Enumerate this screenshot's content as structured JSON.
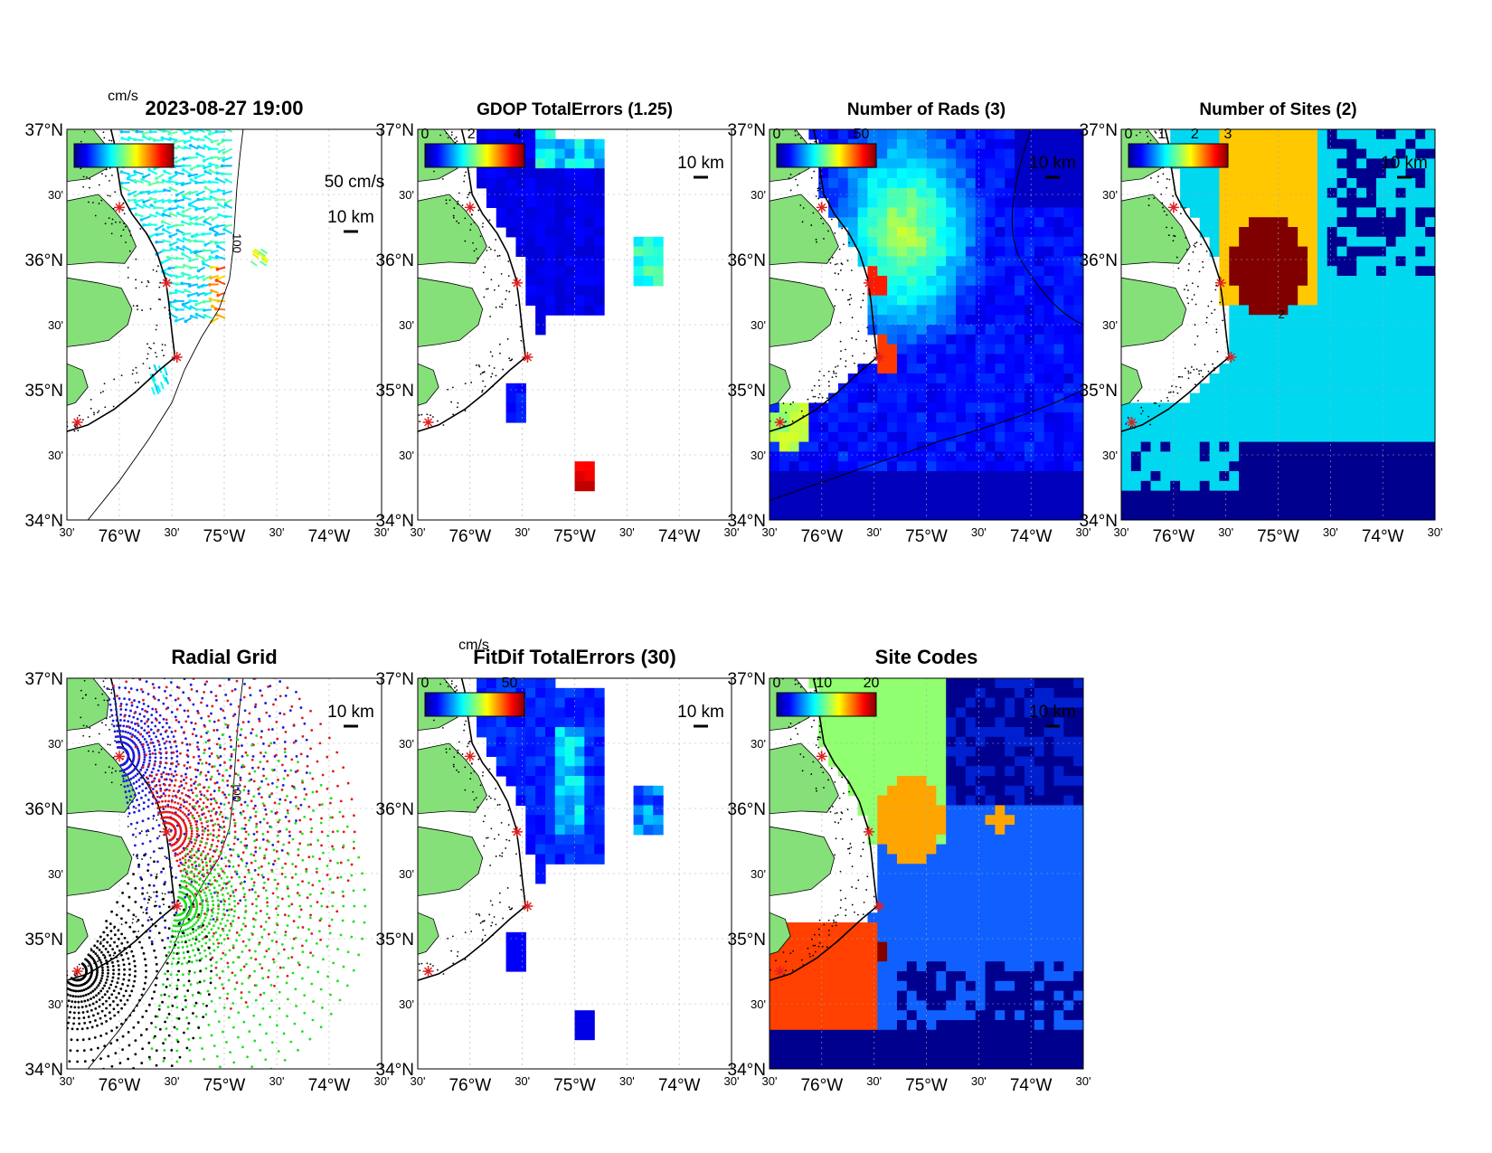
{
  "figure": {
    "panels": [
      {
        "id": "total",
        "title": "2023-08-27 19:00",
        "units": "cm/s",
        "cbar_ticks": [],
        "scale_label": "10 km",
        "vector_label": "50 cm/s",
        "kind": "vectors"
      },
      {
        "id": "gdop",
        "title": "GDOP TotalErrors (1.25)",
        "units": "",
        "cbar_ticks": [
          "0",
          "2",
          "4"
        ],
        "scale_label": "10 km",
        "kind": "gdop"
      },
      {
        "id": "nrads",
        "title": "Number of Rads (3)",
        "units": "",
        "cbar_ticks": [
          "0",
          "50"
        ],
        "scale_label": "10 km",
        "kind": "nrads"
      },
      {
        "id": "nsites",
        "title": "Number of Sites (2)",
        "units": "",
        "cbar_ticks": [
          "0",
          "1",
          "2",
          "3"
        ],
        "scale_label": "10 km",
        "kind": "nsites"
      },
      {
        "id": "radgrid",
        "title": "Radial Grid",
        "units": "",
        "cbar_ticks": [],
        "scale_label": "10 km",
        "kind": "radgrid"
      },
      {
        "id": "fitdif",
        "title": "FitDif TotalErrors (30)",
        "units": "cm/s",
        "cbar_ticks": [
          "0",
          "50"
        ],
        "scale_label": "10 km",
        "kind": "fitdif"
      },
      {
        "id": "sitecodes",
        "title": "Site Codes",
        "units": "",
        "cbar_ticks": [
          "0",
          "10",
          "20"
        ],
        "scale_label": "10 km",
        "kind": "sitecodes"
      }
    ],
    "axes": {
      "y_ticks": [
        {
          "lat": 37.0,
          "label": "37°N",
          "major": true
        },
        {
          "lat": 36.5,
          "label": "30'",
          "major": false
        },
        {
          "lat": 36.0,
          "label": "36°N",
          "major": true
        },
        {
          "lat": 35.5,
          "label": "30'",
          "major": false
        },
        {
          "lat": 35.0,
          "label": "35°N",
          "major": true
        },
        {
          "lat": 34.5,
          "label": "30'",
          "major": false
        },
        {
          "lat": 34.0,
          "label": "34°N",
          "major": true
        }
      ],
      "x_ticks": [
        {
          "lon": -76.5,
          "label": "30'",
          "major": false
        },
        {
          "lon": -76.0,
          "label": "76°W",
          "major": true
        },
        {
          "lon": -75.5,
          "label": "30'",
          "major": false
        },
        {
          "lon": -75.0,
          "label": "75°W",
          "major": true
        },
        {
          "lon": -74.5,
          "label": "30'",
          "major": false
        },
        {
          "lon": -74.0,
          "label": "74°W",
          "major": true
        },
        {
          "lon": -73.5,
          "label": "30'",
          "major": false
        }
      ],
      "lon_range": [
        -76.5,
        -73.5
      ],
      "lat_range": [
        34.0,
        37.0
      ]
    },
    "contour_labels": {
      "isobath": "100",
      "sites_contour": "2"
    },
    "radar_sites": [
      {
        "lon": -76.0,
        "lat": 36.4
      },
      {
        "lon": -75.55,
        "lat": 35.82
      },
      {
        "lon": -75.45,
        "lat": 35.25
      },
      {
        "lon": -76.4,
        "lat": 34.75
      }
    ],
    "colors": {
      "land": "#86e07a",
      "site_marker": "#e02020",
      "cmap": "jet"
    }
  }
}
